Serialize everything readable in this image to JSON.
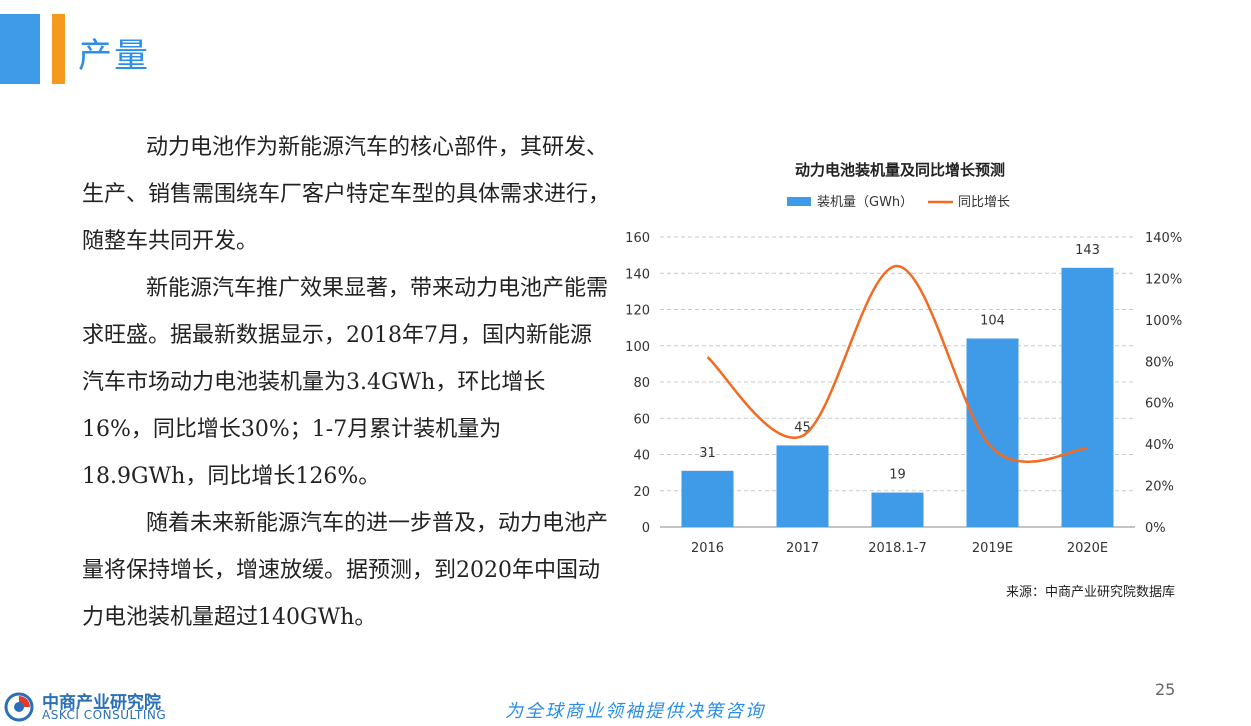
{
  "header": {
    "title": "产量"
  },
  "body": {
    "paragraphs": [
      "动力电池作为新能源汽车的核心部件，其研发、生产、销售需围绕车厂客户特定车型的具体需求进行，随整车共同开发。",
      "新能源汽车推广效果显著，带来动力电池产能需求旺盛。据最新数据显示，2018年7月，国内新能源汽车市场动力电池装机量为3.4GWh，环比增长16%，同比增长30%；1-7月累计装机量为18.9GWh，同比增长126%。",
      "随着未来新能源汽车的进一步普及，动力电池产量将保持增长，增速放缓。据预测，到2020年中国动力电池装机量超过140GWh。"
    ]
  },
  "chart_data": {
    "type": "bar",
    "title": "动力电池装机量及同比增长预测",
    "categories": [
      "2016",
      "2017",
      "2018.1-7",
      "2019E",
      "2020E"
    ],
    "series": [
      {
        "name": "装机量（GWh）",
        "type": "bar",
        "axis": "left",
        "color": "#3f9ae8",
        "values": [
          31,
          45,
          19,
          104,
          143
        ]
      },
      {
        "name": "同比增长",
        "type": "line",
        "axis": "right",
        "color": "#f26b21",
        "values": [
          82,
          44,
          126,
          38,
          38
        ]
      }
    ],
    "ylim_left": [
      0,
      160
    ],
    "yticks_left": [
      "0",
      "20",
      "40",
      "60",
      "80",
      "100",
      "120",
      "140",
      "160"
    ],
    "ylim_right": [
      0,
      140
    ],
    "yticks_right": [
      "0%",
      "20%",
      "40%",
      "60%",
      "80%",
      "100%",
      "120%",
      "140%"
    ],
    "grid": true,
    "legend_position": "top",
    "source": "来源：中商产业研究院数据库"
  },
  "footer": {
    "page_number": "25",
    "slogan": "为全球商业领袖提供决策咨询",
    "logo_cn": "中商产业研究院",
    "logo_en": "ASKCI CONSULTING"
  }
}
